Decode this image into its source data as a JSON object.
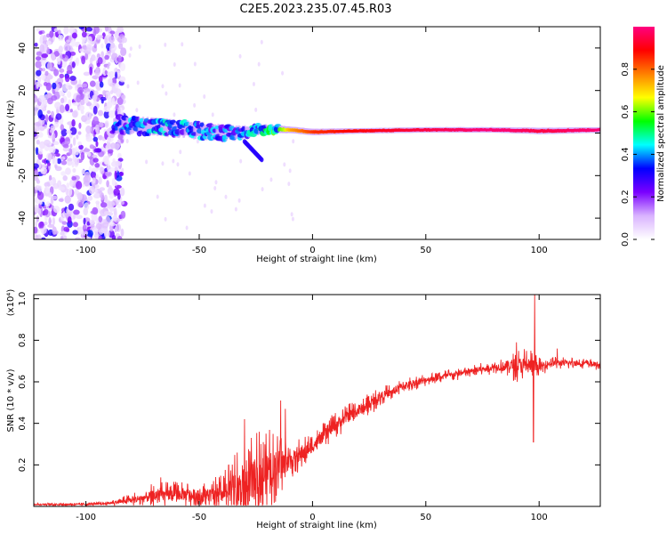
{
  "title": "C2E5.2023.235.07.45.R03",
  "chart_data": [
    {
      "type": "heatmap",
      "title": "C2E5.2023.235.07.45.R03",
      "xlabel": "Height of straight line (km)",
      "ylabel": "Frequency (Hz)",
      "xlim": [
        -123,
        127
      ],
      "ylim": [
        -50,
        50
      ],
      "x_ticks": [
        -100,
        -50,
        0,
        50,
        100
      ],
      "y_ticks": [
        -40,
        -20,
        0,
        20,
        40
      ],
      "colorbar": {
        "label": "Normalized spectral amplitude",
        "range": [
          0,
          1
        ],
        "ticks": [
          0.0,
          0.2,
          0.4,
          0.6,
          0.8
        ],
        "colors": [
          "#ffffff",
          "#d9b3ff",
          "#7a00ff",
          "#0000ff",
          "#00ffff",
          "#00ff00",
          "#ffff00",
          "#ff8000",
          "#ff0000",
          "#ff0080"
        ]
      },
      "features": [
        {
          "name": "noise_region",
          "x_range": [
            -123,
            -87
          ],
          "freq_range": [
            -50,
            50
          ],
          "amplitude": 0.1
        },
        {
          "name": "signal_track",
          "points": [
            {
              "x": -90,
              "freq": 4,
              "width": 8,
              "amp": 0.35
            },
            {
              "x": -70,
              "freq": 3,
              "width": 7,
              "amp": 0.4
            },
            {
              "x": -50,
              "freq": 1,
              "width": 7,
              "amp": 0.4
            },
            {
              "x": -35,
              "freq": 0,
              "width": 6,
              "amp": 0.35
            },
            {
              "x": -20,
              "freq": 2,
              "width": 4,
              "amp": 0.45
            },
            {
              "x": -10,
              "freq": 1.5,
              "width": 3,
              "amp": 0.7
            },
            {
              "x": 0,
              "freq": 0.5,
              "width": 3,
              "amp": 0.8
            },
            {
              "x": 20,
              "freq": 1.0,
              "width": 2.5,
              "amp": 0.85
            },
            {
              "x": 50,
              "freq": 1.5,
              "width": 2.5,
              "amp": 0.9
            },
            {
              "x": 80,
              "freq": 1.5,
              "width": 2.5,
              "amp": 0.95
            },
            {
              "x": 100,
              "freq": 1.0,
              "width": 3,
              "amp": 0.9
            },
            {
              "x": 127,
              "freq": 1.5,
              "width": 2.5,
              "amp": 0.95
            }
          ]
        },
        {
          "name": "drift_branch",
          "points": [
            {
              "x": -30,
              "freq": -4
            },
            {
              "x": -22,
              "freq": -13
            }
          ]
        }
      ]
    },
    {
      "type": "line",
      "xlabel": "Height of straight line (km)",
      "ylabel": "SNR (10 * v/v)",
      "y_multiplier": "(x10⁴)",
      "xlim": [
        -123,
        127
      ],
      "ylim": [
        0,
        1.02
      ],
      "x_ticks": [
        -100,
        -50,
        0,
        50,
        100
      ],
      "y_ticks": [
        0.2,
        0.4,
        0.6,
        0.8,
        1.0
      ],
      "color": "#ee2222",
      "trend": {
        "x": [
          -123,
          -100,
          -90,
          -80,
          -70,
          -60,
          -50,
          -40,
          -30,
          -25,
          -20,
          -15,
          -10,
          -5,
          0,
          5,
          10,
          15,
          20,
          25,
          30,
          35,
          40,
          50,
          60,
          70,
          80,
          90,
          95,
          100,
          105,
          110,
          120,
          127
        ],
        "y": [
          0.01,
          0.01,
          0.015,
          0.03,
          0.05,
          0.06,
          0.05,
          0.06,
          0.08,
          0.13,
          0.16,
          0.2,
          0.22,
          0.25,
          0.29,
          0.34,
          0.39,
          0.43,
          0.46,
          0.49,
          0.53,
          0.55,
          0.58,
          0.61,
          0.63,
          0.65,
          0.67,
          0.68,
          0.68,
          0.67,
          0.69,
          0.69,
          0.69,
          0.68
        ]
      },
      "noise_amplitude": {
        "x": [
          -123,
          -90,
          -80,
          -70,
          -60,
          -50,
          -40,
          -30,
          -20,
          -10,
          0,
          10,
          20,
          30,
          50,
          80,
          90,
          95,
          100,
          105,
          127
        ],
        "amp": [
          0.004,
          0.006,
          0.02,
          0.04,
          0.04,
          0.04,
          0.06,
          0.15,
          0.14,
          0.06,
          0.04,
          0.04,
          0.04,
          0.03,
          0.02,
          0.02,
          0.05,
          0.06,
          0.03,
          0.02,
          0.015
        ]
      },
      "spikes": [
        {
          "x": -67,
          "y": 0.14
        },
        {
          "x": -30,
          "y": 0.42
        },
        {
          "x": -27,
          "y": 0.33
        },
        {
          "x": -14,
          "y": 0.51
        },
        {
          "x": -12,
          "y": 0.47
        },
        {
          "x": 90,
          "y": 0.79
        },
        {
          "x": 97.5,
          "y": 0.31
        },
        {
          "x": 98,
          "y": 1.02
        },
        {
          "x": 108,
          "y": 0.76
        }
      ]
    }
  ]
}
